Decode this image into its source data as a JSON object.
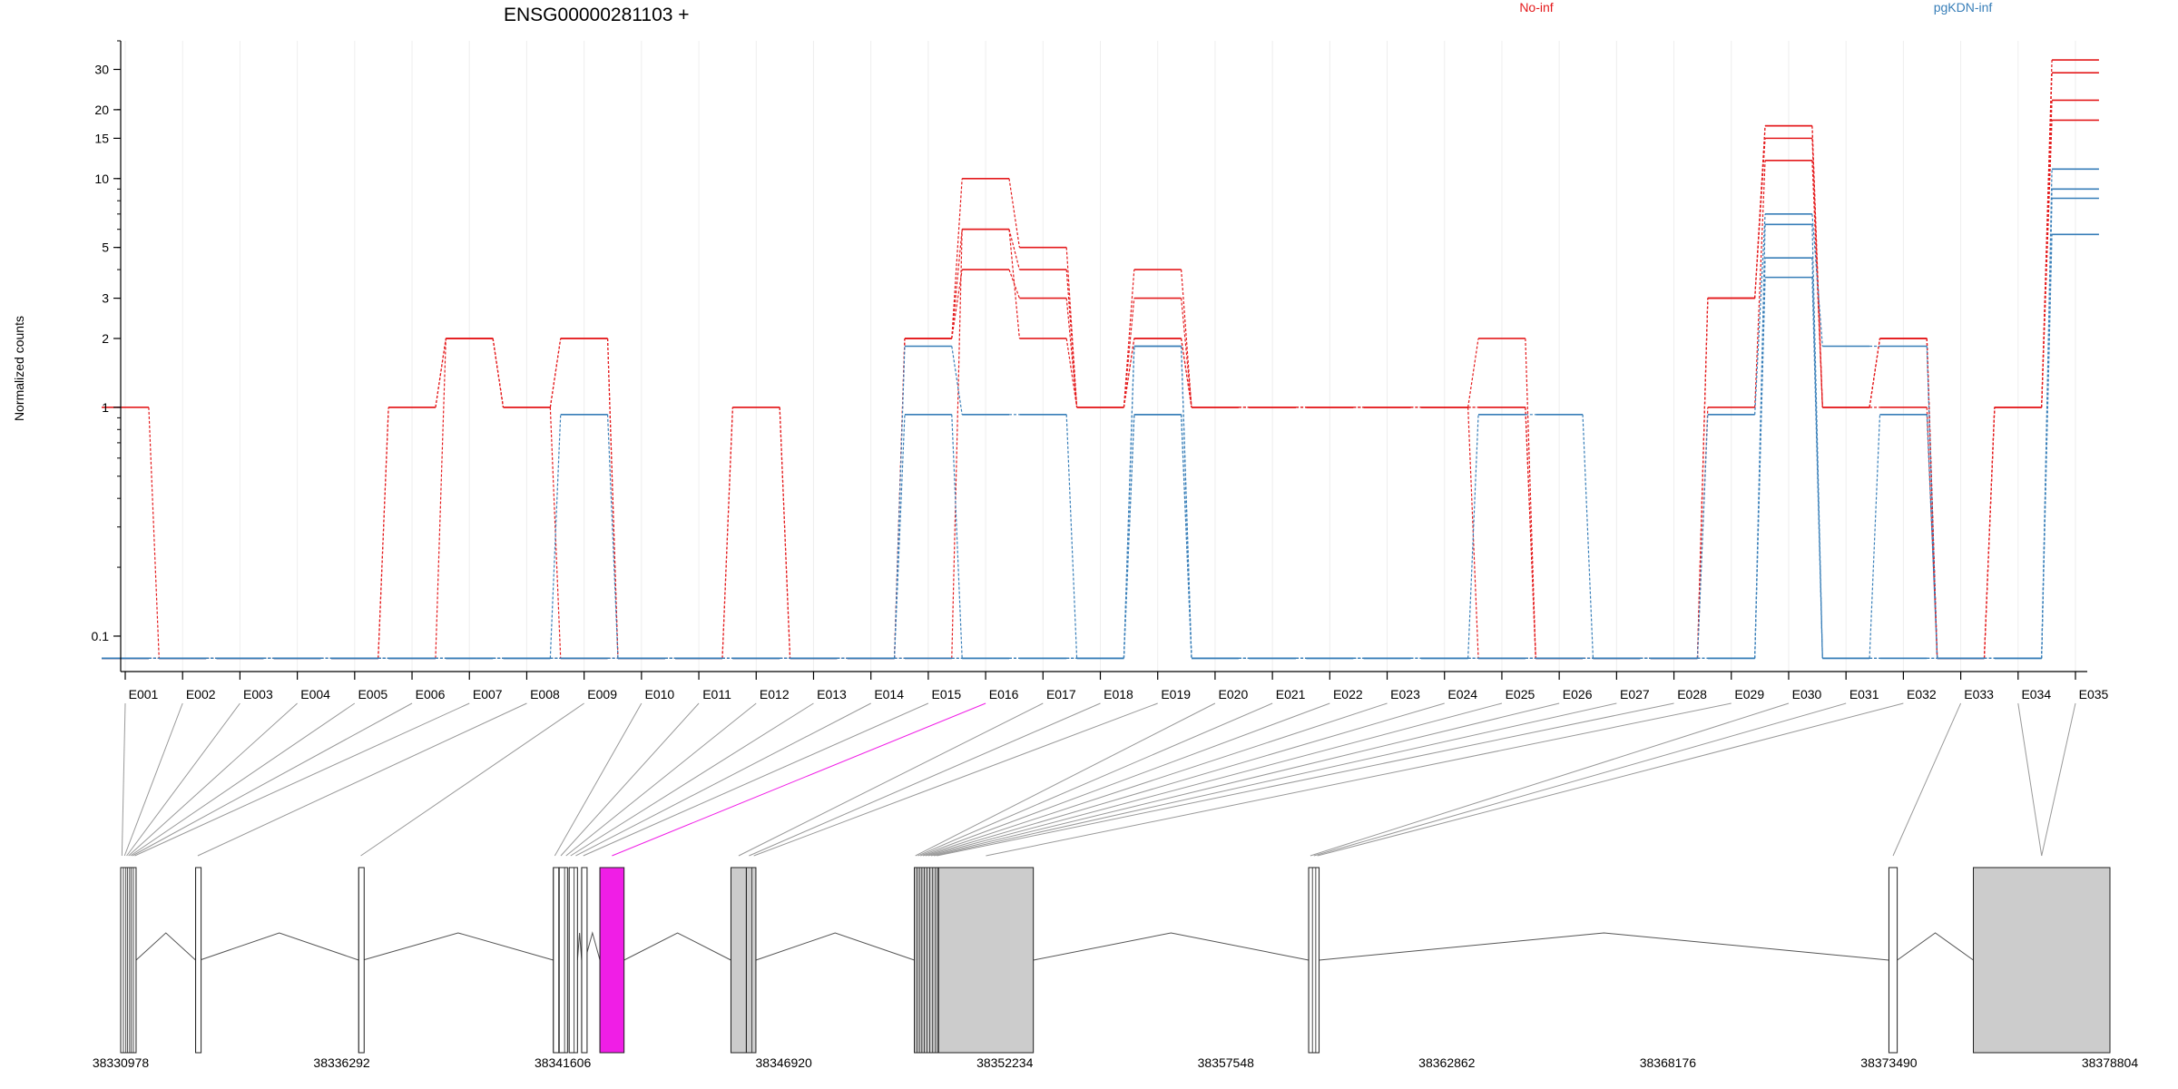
{
  "chart_data": {
    "type": "line",
    "title": "ENSG00000281103 +",
    "ylabel": "Normalized counts",
    "y_scale": "log",
    "y_ticks": [
      0.1,
      1,
      2,
      3,
      5,
      10,
      15,
      20,
      30
    ],
    "ylim": [
      0.07,
      40
    ],
    "categories": [
      "E001",
      "E002",
      "E003",
      "E004",
      "E005",
      "E006",
      "E007",
      "E008",
      "E009",
      "E010",
      "E011",
      "E012",
      "E013",
      "E014",
      "E015",
      "E016",
      "E017",
      "E018",
      "E019",
      "E020",
      "E021",
      "E022",
      "E023",
      "E024",
      "E025",
      "E026",
      "E027",
      "E028",
      "E029",
      "E030",
      "E031",
      "E032",
      "E033",
      "E034",
      "E035"
    ],
    "groups": [
      {
        "name": "No-inf",
        "color": "#e41a1c"
      },
      {
        "name": "pgKDN-inf",
        "color": "#377eb8"
      }
    ],
    "series": [
      {
        "group": "No-inf",
        "values": [
          1,
          0.08,
          0.08,
          0.08,
          0.08,
          1,
          2,
          1,
          2,
          0.08,
          0.08,
          1,
          0.08,
          0.08,
          2,
          10,
          5,
          1,
          4,
          1,
          1,
          1,
          1,
          1,
          2,
          0.08,
          0.08,
          0.08,
          3,
          17,
          1,
          2,
          0.08,
          1,
          33
        ]
      },
      {
        "group": "No-inf",
        "values": [
          0.08,
          0.08,
          0.08,
          0.08,
          0.08,
          1,
          2,
          1,
          2,
          0.08,
          0.08,
          1,
          0.08,
          0.08,
          2,
          6,
          4,
          1,
          3,
          1,
          1,
          1,
          1,
          1,
          1,
          0.08,
          0.08,
          0.08,
          3,
          15,
          1,
          2,
          0.08,
          1,
          29
        ]
      },
      {
        "group": "No-inf",
        "values": [
          0.08,
          0.08,
          0.08,
          0.08,
          0.08,
          0.08,
          2,
          1,
          0.08,
          0.08,
          0.08,
          0.08,
          0.08,
          0.08,
          2,
          4,
          3,
          1,
          2,
          1,
          1,
          1,
          1,
          1,
          1,
          0.08,
          0.08,
          0.08,
          1,
          12,
          1,
          1,
          0.08,
          1,
          22
        ]
      },
      {
        "group": "No-inf",
        "values": [
          0.08,
          0.08,
          0.08,
          0.08,
          0.08,
          0.08,
          0.08,
          0.08,
          0.08,
          0.08,
          0.08,
          0.08,
          0.08,
          0.08,
          0.08,
          6,
          2,
          1,
          2,
          1,
          1,
          1,
          1,
          1,
          0.08,
          0.08,
          0.08,
          0.08,
          3,
          17,
          1,
          2,
          0.08,
          1,
          18
        ]
      },
      {
        "group": "pgKDN-inf",
        "values": [
          0.08,
          0.08,
          0.08,
          0.08,
          0.08,
          0.08,
          0.08,
          0.08,
          0.93,
          0.08,
          0.08,
          0.08,
          0.08,
          0.08,
          1.85,
          0.93,
          0.93,
          0.08,
          1.85,
          0.08,
          0.08,
          0.08,
          0.08,
          0.08,
          0.93,
          0.93,
          0.08,
          0.08,
          0.93,
          7,
          1.85,
          1.85,
          0.08,
          0.08,
          11
        ]
      },
      {
        "group": "pgKDN-inf",
        "values": [
          0.08,
          0.08,
          0.08,
          0.08,
          0.08,
          0.08,
          0.08,
          0.08,
          0.08,
          0.08,
          0.08,
          0.08,
          0.08,
          0.08,
          0.93,
          0.08,
          0.08,
          0.08,
          0.93,
          0.08,
          0.08,
          0.08,
          0.08,
          0.08,
          0.08,
          0.08,
          0.08,
          0.08,
          0.08,
          6.3,
          0.08,
          0.93,
          0.08,
          0.08,
          9
        ]
      },
      {
        "group": "pgKDN-inf",
        "values": [
          0.08,
          0.08,
          0.08,
          0.08,
          0.08,
          0.08,
          0.08,
          0.08,
          0.08,
          0.08,
          0.08,
          0.08,
          0.08,
          0.08,
          0.08,
          0.08,
          0.08,
          0.08,
          1.85,
          0.08,
          0.08,
          0.08,
          0.08,
          0.08,
          0.08,
          0.08,
          0.08,
          0.08,
          0.08,
          4.5,
          0.08,
          0.08,
          0.08,
          0.08,
          8.2
        ]
      },
      {
        "group": "pgKDN-inf",
        "values": [
          0.08,
          0.08,
          0.08,
          0.08,
          0.08,
          0.08,
          0.08,
          0.08,
          0.08,
          0.08,
          0.08,
          0.08,
          0.08,
          0.08,
          0.08,
          0.08,
          0.08,
          0.08,
          0.93,
          0.08,
          0.08,
          0.08,
          0.08,
          0.08,
          0.08,
          0.08,
          0.08,
          0.08,
          0.08,
          3.7,
          0.08,
          0.08,
          0.08,
          0.08,
          5.7
        ]
      }
    ],
    "gene_model": {
      "genomic_ticks": [
        "38330978",
        "38336292",
        "38341606",
        "38346920",
        "38352234",
        "38357548",
        "38362862",
        "38368176",
        "38373490",
        "38378804"
      ],
      "start": 38330978,
      "end": 38378804,
      "highlight_exon": "E016",
      "highlight_color": "#f01ee6",
      "exon_color": "#cccccc",
      "exons": [
        {
          "id": "E001",
          "start": 38330978,
          "end": 38331038
        },
        {
          "id": "E002",
          "start": 38331043,
          "end": 38331098
        },
        {
          "id": "E003",
          "start": 38331103,
          "end": 38331140
        },
        {
          "id": "E004",
          "start": 38331145,
          "end": 38331188
        },
        {
          "id": "E005",
          "start": 38331193,
          "end": 38331230
        },
        {
          "id": "E006",
          "start": 38331235,
          "end": 38331278
        },
        {
          "id": "E007",
          "start": 38331283,
          "end": 38331348
        },
        {
          "id": "E008",
          "start": 38332780,
          "end": 38332880
        },
        {
          "id": "E009",
          "start": 38336700,
          "end": 38336800
        },
        {
          "id": "E010",
          "start": 38341380,
          "end": 38341450
        },
        {
          "id": "E011",
          "start": 38341520,
          "end": 38341600
        },
        {
          "id": "E012",
          "start": 38341650,
          "end": 38341720
        },
        {
          "id": "E013",
          "start": 38341760,
          "end": 38341830
        },
        {
          "id": "E014",
          "start": 38341880,
          "end": 38341960
        },
        {
          "id": "E015",
          "start": 38342060,
          "end": 38342140
        },
        {
          "id": "E016",
          "start": 38342500,
          "end": 38343080
        },
        {
          "id": "E017",
          "start": 38345650,
          "end": 38346020
        },
        {
          "id": "E018",
          "start": 38346020,
          "end": 38346150
        },
        {
          "id": "E019",
          "start": 38346150,
          "end": 38346250
        },
        {
          "id": "E020",
          "start": 38350060,
          "end": 38350110
        },
        {
          "id": "E021",
          "start": 38350120,
          "end": 38350170
        },
        {
          "id": "E022",
          "start": 38350180,
          "end": 38350230
        },
        {
          "id": "E023",
          "start": 38350240,
          "end": 38350290
        },
        {
          "id": "E024",
          "start": 38350300,
          "end": 38350350
        },
        {
          "id": "E025",
          "start": 38350360,
          "end": 38350420
        },
        {
          "id": "E026",
          "start": 38350430,
          "end": 38350490
        },
        {
          "id": "E027",
          "start": 38350500,
          "end": 38350560
        },
        {
          "id": "E028",
          "start": 38350570,
          "end": 38350630
        },
        {
          "id": "E029",
          "start": 38350640,
          "end": 38352920
        },
        {
          "id": "E030",
          "start": 38359540,
          "end": 38359620
        },
        {
          "id": "E031",
          "start": 38359630,
          "end": 38359700
        },
        {
          "id": "E032",
          "start": 38359710,
          "end": 38359790
        },
        {
          "id": "E033",
          "start": 38373490,
          "end": 38373690
        },
        {
          "id": "E034",
          "start": 38375520,
          "end": 38378804
        },
        {
          "id": "E035",
          "start": 38375520,
          "end": 38378804
        }
      ],
      "drawn_exons": [
        {
          "start": 38330978,
          "end": 38331348,
          "fill": "#ffffff"
        },
        {
          "start": 38332780,
          "end": 38332880,
          "fill": "#ffffff"
        },
        {
          "start": 38336700,
          "end": 38336800,
          "fill": "#ffffff"
        },
        {
          "start": 38341380,
          "end": 38341450,
          "fill": "#ffffff"
        },
        {
          "start": 38341520,
          "end": 38341720,
          "fill": "#ffffff"
        },
        {
          "start": 38341760,
          "end": 38341960,
          "fill": "#ffffff"
        },
        {
          "start": 38342060,
          "end": 38342140,
          "fill": "#ffffff"
        },
        {
          "start": 38342500,
          "end": 38343080,
          "fill": "#f01ee6"
        },
        {
          "start": 38345650,
          "end": 38346020,
          "fill": "#cccccc"
        },
        {
          "start": 38346020,
          "end": 38346250,
          "fill": "#cccccc"
        },
        {
          "start": 38350060,
          "end": 38350630,
          "fill": "#cccccc"
        },
        {
          "start": 38350640,
          "end": 38352920,
          "fill": "#cccccc"
        },
        {
          "start": 38359540,
          "end": 38359790,
          "fill": "#ffffff"
        },
        {
          "start": 38373490,
          "end": 38373690,
          "fill": "#ffffff"
        },
        {
          "start": 38375520,
          "end": 38378804,
          "fill": "#cccccc"
        }
      ]
    }
  }
}
